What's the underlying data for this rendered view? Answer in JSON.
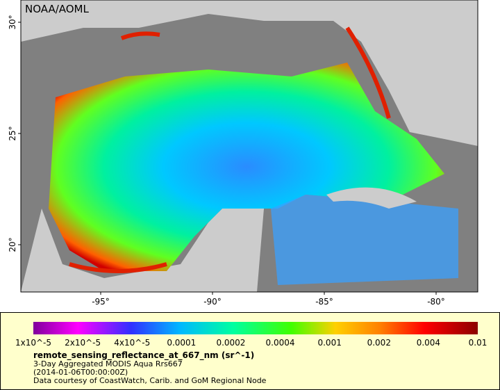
{
  "map": {
    "credit": "NOAA/AOML",
    "lat_ticks": [
      "30°",
      "25°",
      "20°"
    ],
    "lon_ticks": [
      "-95°",
      "-90°",
      "-85°",
      "-80°"
    ]
  },
  "legend": {
    "scale_labels": [
      "1x10^-5",
      "2x10^-5",
      "4x10^-5",
      "0.0001",
      "0.0002",
      "0.0004",
      "0.001",
      "0.002",
      "0.004",
      "0.01"
    ],
    "variable": "remote_sensing_reflectance_at_667_nm (sr^-1)",
    "description": "3-Day Aggregated MODIS Aqua Rrs667",
    "time": "(2014-01-06T00:00:00Z)",
    "source": "Data courtesy of CoastWatch, Carib. and GoM Regional Node"
  }
}
